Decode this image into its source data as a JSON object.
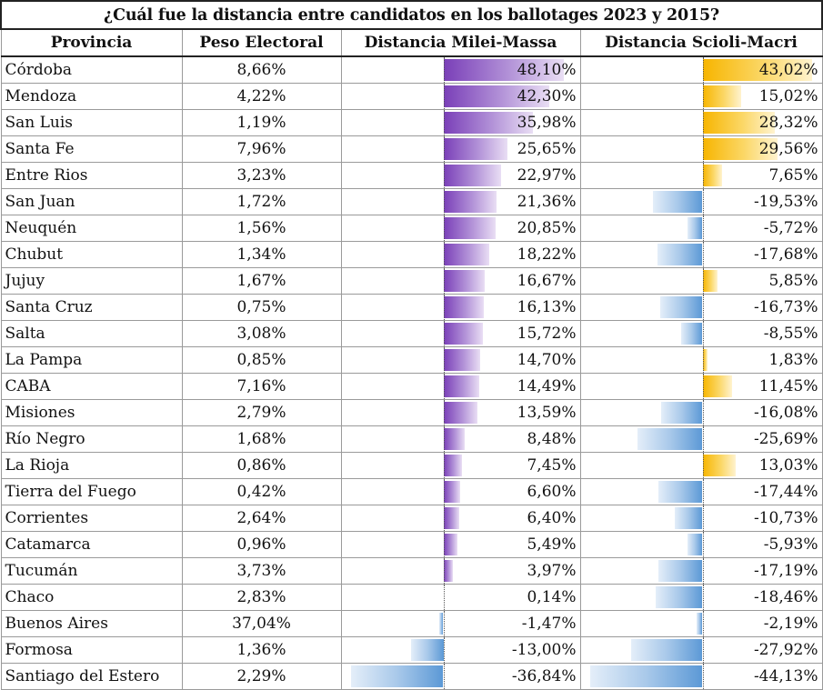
{
  "title": "¿Cuál fue la distancia entre candidatos en los ballotages 2023 y 2015?",
  "headers": {
    "provincia": "Provincia",
    "peso": "Peso Electoral",
    "mm": "Distancia Milei-Massa",
    "sm": "Distancia Scioli-Macri"
  },
  "colors": {
    "milei_massa_positive": "#7a3fb8",
    "scioli_macri_positive": "#f7b500",
    "negative": "#5c99d6"
  },
  "rows": [
    {
      "provincia": "Córdoba",
      "peso": "8,66%",
      "mm": "48,10%",
      "mm_value": 48.1,
      "sm": "43,02%",
      "sm_value": 43.02
    },
    {
      "provincia": "Mendoza",
      "peso": "4,22%",
      "mm": "42,30%",
      "mm_value": 42.3,
      "sm": "15,02%",
      "sm_value": 15.02
    },
    {
      "provincia": "San Luis",
      "peso": "1,19%",
      "mm": "35,98%",
      "mm_value": 35.98,
      "sm": "28,32%",
      "sm_value": 28.32
    },
    {
      "provincia": "Santa Fe",
      "peso": "7,96%",
      "mm": "25,65%",
      "mm_value": 25.65,
      "sm": "29,56%",
      "sm_value": 29.56
    },
    {
      "provincia": "Entre Rios",
      "peso": "3,23%",
      "mm": "22,97%",
      "mm_value": 22.97,
      "sm": "7,65%",
      "sm_value": 7.65
    },
    {
      "provincia": "San Juan",
      "peso": "1,72%",
      "mm": "21,36%",
      "mm_value": 21.36,
      "sm": "-19,53%",
      "sm_value": -19.53
    },
    {
      "provincia": "Neuquén",
      "peso": "1,56%",
      "mm": "20,85%",
      "mm_value": 20.85,
      "sm": "-5,72%",
      "sm_value": -5.72
    },
    {
      "provincia": "Chubut",
      "peso": "1,34%",
      "mm": "18,22%",
      "mm_value": 18.22,
      "sm": "-17,68%",
      "sm_value": -17.68
    },
    {
      "provincia": "Jujuy",
      "peso": "1,67%",
      "mm": "16,67%",
      "mm_value": 16.67,
      "sm": "5,85%",
      "sm_value": 5.85
    },
    {
      "provincia": "Santa Cruz",
      "peso": "0,75%",
      "mm": "16,13%",
      "mm_value": 16.13,
      "sm": "-16,73%",
      "sm_value": -16.73
    },
    {
      "provincia": "Salta",
      "peso": "3,08%",
      "mm": "15,72%",
      "mm_value": 15.72,
      "sm": "-8,55%",
      "sm_value": -8.55
    },
    {
      "provincia": "La Pampa",
      "peso": "0,85%",
      "mm": "14,70%",
      "mm_value": 14.7,
      "sm": "1,83%",
      "sm_value": 1.83
    },
    {
      "provincia": "CABA",
      "peso": "7,16%",
      "mm": "14,49%",
      "mm_value": 14.49,
      "sm": "11,45%",
      "sm_value": 11.45
    },
    {
      "provincia": "Misiones",
      "peso": "2,79%",
      "mm": "13,59%",
      "mm_value": 13.59,
      "sm": "-16,08%",
      "sm_value": -16.08
    },
    {
      "provincia": "Río Negro",
      "peso": "1,68%",
      "mm": "8,48%",
      "mm_value": 8.48,
      "sm": "-25,69%",
      "sm_value": -25.69
    },
    {
      "provincia": "La Rioja",
      "peso": "0,86%",
      "mm": "7,45%",
      "mm_value": 7.45,
      "sm": "13,03%",
      "sm_value": 13.03
    },
    {
      "provincia": "Tierra del Fuego",
      "peso": "0,42%",
      "mm": "6,60%",
      "mm_value": 6.6,
      "sm": "-17,44%",
      "sm_value": -17.44
    },
    {
      "provincia": "Corrientes",
      "peso": "2,64%",
      "mm": "6,40%",
      "mm_value": 6.4,
      "sm": "-10,73%",
      "sm_value": -10.73
    },
    {
      "provincia": "Catamarca",
      "peso": "0,96%",
      "mm": "5,49%",
      "mm_value": 5.49,
      "sm": "-5,93%",
      "sm_value": -5.93
    },
    {
      "provincia": "Tucumán",
      "peso": "3,73%",
      "mm": "3,97%",
      "mm_value": 3.97,
      "sm": "-17,19%",
      "sm_value": -17.19
    },
    {
      "provincia": "Chaco",
      "peso": "2,83%",
      "mm": "0,14%",
      "mm_value": 0.14,
      "sm": "-18,46%",
      "sm_value": -18.46
    },
    {
      "provincia": "Buenos Aires",
      "peso": "37,04%",
      "mm": "-1,47%",
      "mm_value": -1.47,
      "sm": "-2,19%",
      "sm_value": -2.19
    },
    {
      "provincia": "Formosa",
      "peso": "1,36%",
      "mm": "-13,00%",
      "mm_value": -13.0,
      "sm": "-27,92%",
      "sm_value": -27.92
    },
    {
      "provincia": "Santiago del Estero",
      "peso": "2,29%",
      "mm": "-36,84%",
      "mm_value": -36.84,
      "sm": "-44,13%",
      "sm_value": -44.13
    }
  ]
}
